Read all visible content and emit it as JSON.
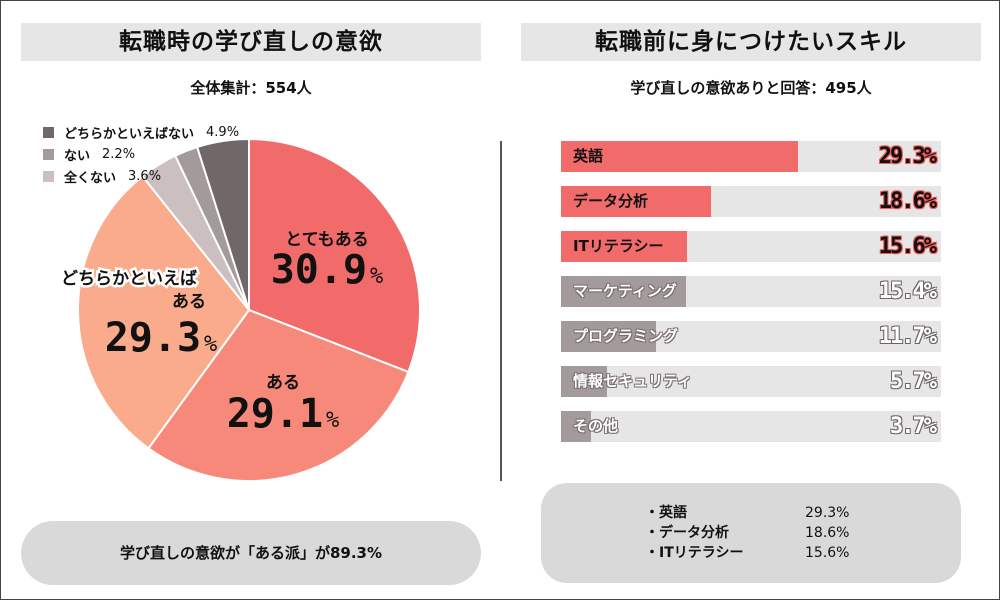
{
  "chart_data": [
    {
      "type": "pie",
      "title": "転職時の学び直しの意欲",
      "subtitle": "全体集計：554人",
      "categories": [
        "とてもある",
        "ある",
        "どちらかといえばある",
        "全くない",
        "ない",
        "どちらかといえばない"
      ],
      "values": [
        30.9,
        29.1,
        29.3,
        3.6,
        2.2,
        4.9
      ],
      "unit": "%",
      "colors": [
        "#f26b6b",
        "#f7897a",
        "#f9ab8c",
        "#cbbfc0",
        "#a39a9b",
        "#716768"
      ],
      "legend": [
        {
          "label": "どちらかといえばない",
          "value": "4.9%",
          "color": "#716768"
        },
        {
          "label": "ない",
          "value": "2.2%",
          "color": "#a39a9b"
        },
        {
          "label": "全くない",
          "value": "3.6%",
          "color": "#cbbfc0"
        }
      ],
      "slice_labels": [
        {
          "label": "とてもある",
          "value": "30.9",
          "unit": "%"
        },
        {
          "label": "ある",
          "value": "29.1",
          "unit": "%"
        },
        {
          "label": "どちらかといえば",
          "label2": "ある",
          "value": "29.3",
          "unit": "%"
        }
      ],
      "summary": "学び直しの意欲が「ある派」が89.3%"
    },
    {
      "type": "bar",
      "orientation": "horizontal",
      "title": "転職前に身につけたいスキル",
      "subtitle": "学び直しの意欲ありと回答：495人",
      "categories": [
        "英語",
        "データ分析",
        "ITリテラシー",
        "マーケティング",
        "プログラミング",
        "情報セキュリティ",
        "その他"
      ],
      "values": [
        29.3,
        18.6,
        15.6,
        15.4,
        11.7,
        5.7,
        3.7
      ],
      "labels": [
        "29.3%",
        "18.6%",
        "15.6%",
        "15.4%",
        "11.7%",
        "5.7%",
        "3.7%"
      ],
      "xlim": [
        0,
        47
      ],
      "highlight_count": 3,
      "colors": {
        "highlight": "#f26b6b",
        "muted": "#a39a9b",
        "track": "#e6e6e6"
      },
      "top3": [
        {
          "name": "・英語",
          "value": "29.3%"
        },
        {
          "name": "・データ分析",
          "value": "18.6%"
        },
        {
          "name": "・ITリテラシー",
          "value": "15.6%"
        }
      ]
    }
  ]
}
